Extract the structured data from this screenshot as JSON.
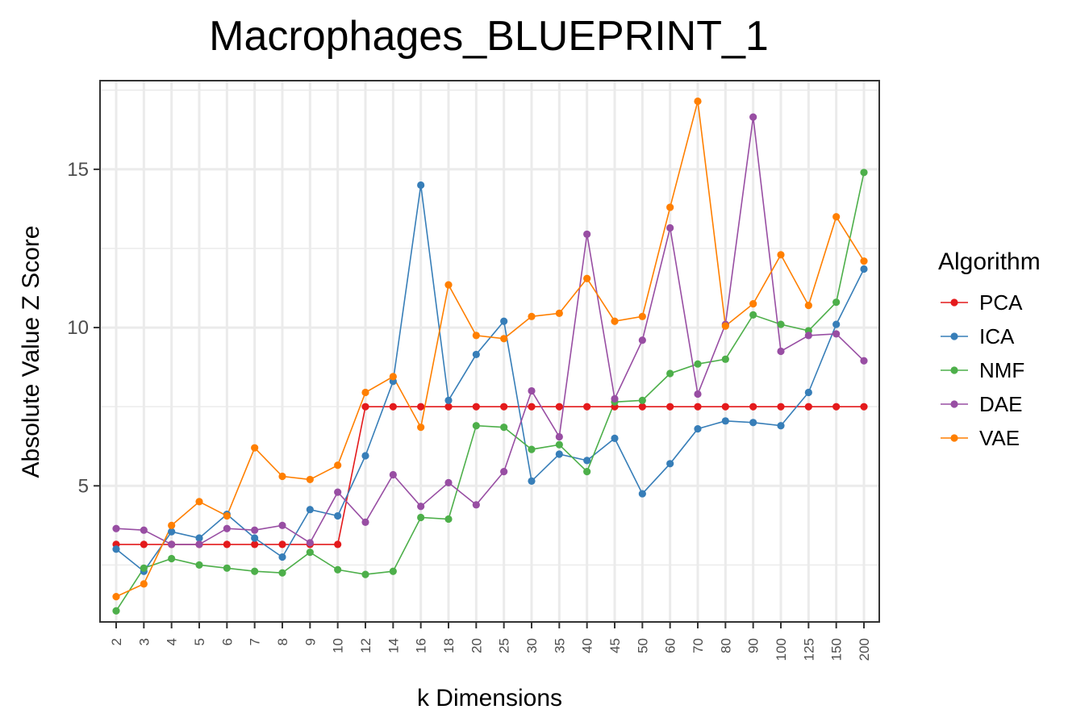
{
  "chart_data": {
    "type": "line",
    "title": "Macrophages_BLUEPRINT_1",
    "xlabel": "k Dimensions",
    "ylabel": "Absolute Value Z Score",
    "categories": [
      "2",
      "3",
      "4",
      "5",
      "6",
      "7",
      "8",
      "9",
      "10",
      "12",
      "14",
      "16",
      "18",
      "20",
      "25",
      "30",
      "35",
      "40",
      "45",
      "50",
      "60",
      "70",
      "80",
      "90",
      "100",
      "125",
      "150",
      "200"
    ],
    "yticks": [
      "5",
      "10",
      "15"
    ],
    "ylim": [
      0.7,
      17.8
    ],
    "grid": true,
    "legend_title": "Algorithm",
    "legend_position": "right",
    "series": [
      {
        "name": "PCA",
        "color": "#E41A1C",
        "values": [
          3.15,
          3.15,
          3.15,
          3.15,
          3.15,
          3.15,
          3.15,
          3.15,
          3.15,
          7.5,
          7.5,
          7.5,
          7.5,
          7.5,
          7.5,
          7.5,
          7.5,
          7.5,
          7.5,
          7.5,
          7.5,
          7.5,
          7.5,
          7.5,
          7.5,
          7.5,
          7.5,
          7.5
        ]
      },
      {
        "name": "ICA",
        "color": "#377EB8",
        "values": [
          3.0,
          2.3,
          3.55,
          3.35,
          4.1,
          3.35,
          2.75,
          4.25,
          4.05,
          5.95,
          8.3,
          14.5,
          7.7,
          9.15,
          10.2,
          5.15,
          6.0,
          5.8,
          6.5,
          4.75,
          5.7,
          6.8,
          7.05,
          7.0,
          6.9,
          7.95,
          10.1,
          11.85
        ]
      },
      {
        "name": "NMF",
        "color": "#4DAF4A",
        "values": [
          1.05,
          2.4,
          2.7,
          2.5,
          2.4,
          2.3,
          2.25,
          2.9,
          2.35,
          2.2,
          2.3,
          4.0,
          3.95,
          6.9,
          6.85,
          6.15,
          6.3,
          5.45,
          7.65,
          7.7,
          8.55,
          8.85,
          9.0,
          10.4,
          10.1,
          9.9,
          10.8,
          14.9
        ]
      },
      {
        "name": "DAE",
        "color": "#984EA3",
        "values": [
          3.65,
          3.6,
          3.15,
          3.15,
          3.65,
          3.6,
          3.75,
          3.2,
          4.8,
          3.85,
          5.35,
          4.35,
          5.1,
          4.4,
          5.45,
          8.0,
          6.55,
          12.95,
          7.75,
          9.6,
          13.15,
          7.9,
          10.1,
          16.65,
          9.25,
          9.75,
          9.8,
          8.95
        ]
      },
      {
        "name": "VAE",
        "color": "#FF7F00",
        "values": [
          1.5,
          1.9,
          3.75,
          4.5,
          4.05,
          6.2,
          5.3,
          5.2,
          5.65,
          7.95,
          8.45,
          6.85,
          11.35,
          9.75,
          9.65,
          10.35,
          10.45,
          11.55,
          10.2,
          10.35,
          13.8,
          17.15,
          10.05,
          10.75,
          12.3,
          10.7,
          13.5,
          12.1
        ]
      }
    ]
  }
}
